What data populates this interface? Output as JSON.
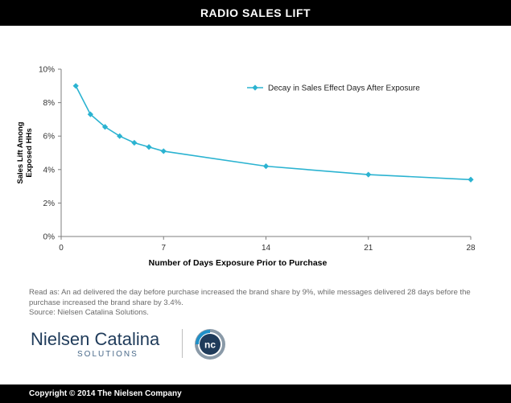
{
  "header": {
    "title": "RADIO SALES LIFT"
  },
  "chart_data": {
    "type": "line",
    "title": "",
    "xlabel": "Number of Days Exposure Prior to Purchase",
    "ylabel_lines": [
      "Sales Lift Among",
      "Exposed HHs"
    ],
    "xlim": [
      0,
      28
    ],
    "ylim": [
      0,
      10
    ],
    "x_ticks": [
      0,
      7,
      14,
      21,
      28
    ],
    "x_tick_labels": [
      "0",
      "7",
      "14",
      "21",
      "28"
    ],
    "y_ticks": [
      0,
      2,
      4,
      6,
      8,
      10
    ],
    "y_tick_labels": [
      "0%",
      "2%",
      "4%",
      "6%",
      "8%",
      "10%"
    ],
    "grid": false,
    "legend_position": "top-right",
    "series": [
      {
        "name": "Decay in Sales Effect Days After Exposure",
        "color": "#2bb3d1",
        "x": [
          1,
          2,
          3,
          4,
          5,
          6,
          7,
          14,
          21,
          28
        ],
        "y": [
          9.0,
          7.3,
          6.55,
          6.0,
          5.6,
          5.35,
          5.1,
          4.2,
          3.7,
          3.4
        ]
      }
    ]
  },
  "footnote": {
    "line1": "Read as: An ad delivered the day before purchase increased the brand share by 9%, while messages delivered 28 days before the",
    "line2": "purchase increased the brand share by 3.4%.",
    "line3": "Source: Nielsen Catalina Solutions."
  },
  "logo": {
    "word": "Nielsen Catalina",
    "sub": "SOLUTIONS",
    "mark": "nc",
    "icon": "nc-logo-icon"
  },
  "footer": {
    "copyright": "Copyright © 2014 The Nielsen Company"
  },
  "colors": {
    "bar": "#000000",
    "series": "#2bb3d1",
    "axis": "#7f7f7f"
  }
}
